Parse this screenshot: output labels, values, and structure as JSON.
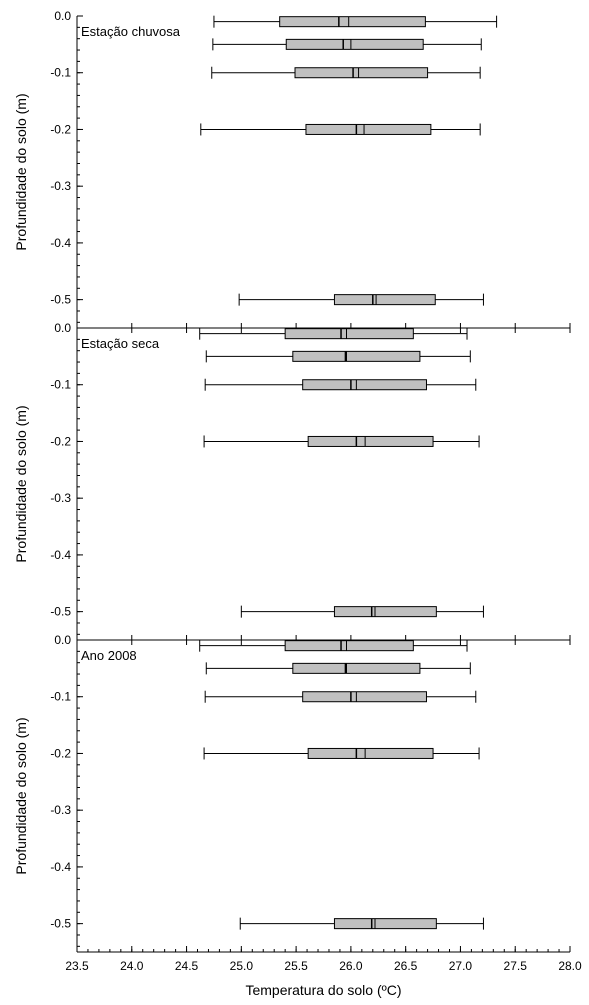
{
  "chart_data": {
    "type": "boxplot",
    "xlabel": "Temperatura do solo (ºC)",
    "ylabel": "Profundidade do solo (m)",
    "xlim": [
      23.5,
      28.0
    ],
    "ylim": [
      -0.55,
      0.0
    ],
    "x_ticks": [
      "23.5",
      "24.0",
      "24.5",
      "25.0",
      "25.5",
      "26.0",
      "26.5",
      "27.0",
      "27.5",
      "28.0"
    ],
    "y_ticks": [
      {
        "value": 0.0,
        "label": "0.0"
      },
      {
        "value": -0.1,
        "label": "-0.1"
      },
      {
        "value": -0.2,
        "label": "-0.2"
      },
      {
        "value": -0.3,
        "label": "-0.3"
      },
      {
        "value": -0.4,
        "label": "-0.4"
      },
      {
        "value": -0.5,
        "label": "-0.5"
      }
    ],
    "panels": [
      {
        "title": "Estação chuvosa",
        "boxes": [
          {
            "depth": -0.01,
            "min": 24.75,
            "q1": 25.35,
            "median": 25.89,
            "mean": 25.98,
            "q3": 26.68,
            "max": 27.33
          },
          {
            "depth": -0.05,
            "min": 24.74,
            "q1": 25.41,
            "median": 25.93,
            "mean": 26.0,
            "q3": 26.66,
            "max": 27.19
          },
          {
            "depth": -0.1,
            "min": 24.73,
            "q1": 25.49,
            "median": 26.02,
            "mean": 26.07,
            "q3": 26.7,
            "max": 27.18
          },
          {
            "depth": -0.2,
            "min": 24.63,
            "q1": 25.59,
            "median": 26.05,
            "mean": 26.12,
            "q3": 26.73,
            "max": 27.18
          },
          {
            "depth": -0.5,
            "min": 24.98,
            "q1": 25.85,
            "median": 26.2,
            "mean": 26.23,
            "q3": 26.77,
            "max": 27.21
          }
        ]
      },
      {
        "title": "Estação seca",
        "boxes": [
          {
            "depth": -0.01,
            "min": 24.62,
            "q1": 25.4,
            "median": 25.91,
            "mean": 25.96,
            "q3": 26.57,
            "max": 27.06
          },
          {
            "depth": -0.05,
            "min": 24.68,
            "q1": 25.47,
            "median": 25.95,
            "mean": 25.96,
            "q3": 26.63,
            "max": 27.09
          },
          {
            "depth": -0.1,
            "min": 24.67,
            "q1": 25.56,
            "median": 26.0,
            "mean": 26.05,
            "q3": 26.69,
            "max": 27.14
          },
          {
            "depth": -0.2,
            "min": 24.66,
            "q1": 25.61,
            "median": 26.05,
            "mean": 26.13,
            "q3": 26.75,
            "max": 27.17
          },
          {
            "depth": -0.5,
            "min": 25.0,
            "q1": 25.85,
            "median": 26.19,
            "mean": 26.22,
            "q3": 26.78,
            "max": 27.21
          }
        ]
      },
      {
        "title": "Ano 2008",
        "boxes": [
          {
            "depth": -0.01,
            "min": 24.62,
            "q1": 25.4,
            "median": 25.91,
            "mean": 25.96,
            "q3": 26.57,
            "max": 27.06
          },
          {
            "depth": -0.05,
            "min": 24.68,
            "q1": 25.47,
            "median": 25.95,
            "mean": 25.96,
            "q3": 26.63,
            "max": 27.09
          },
          {
            "depth": -0.1,
            "min": 24.67,
            "q1": 25.56,
            "median": 26.0,
            "mean": 26.05,
            "q3": 26.69,
            "max": 27.14
          },
          {
            "depth": -0.2,
            "min": 24.66,
            "q1": 25.61,
            "median": 26.05,
            "mean": 26.13,
            "q3": 26.75,
            "max": 27.17
          },
          {
            "depth": -0.5,
            "min": 24.99,
            "q1": 25.85,
            "median": 26.19,
            "mean": 26.22,
            "q3": 26.78,
            "max": 27.21
          }
        ]
      }
    ],
    "box_fill": "#c0c0c0",
    "line_color": "#000000",
    "grid": false
  }
}
